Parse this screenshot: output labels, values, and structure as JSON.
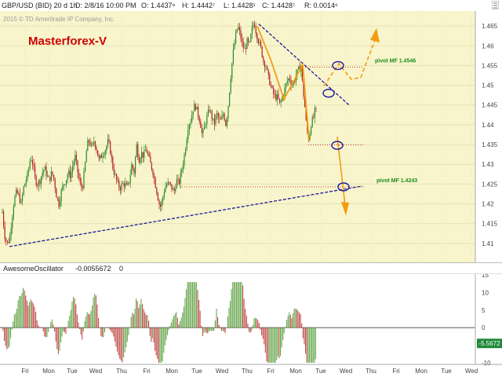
{
  "header": {
    "symbol": "GBP/USD (BID) 20 d 1h",
    "date": "D: 2/8/16 10:00 PM",
    "open": "O: 1.4437⁹",
    "high": "H: 1.4442⁷",
    "low": "L: 1.4428¹",
    "close": "C: 1.4428⁷",
    "range": "R: 0.0014⁶"
  },
  "copyright": "2015 © TD Ameritrade IP Company, Inc.",
  "brand": "Masterforex-V",
  "oscillator": {
    "name": "AwesomeOscillator",
    "value": "-0.0055672",
    "param": "0",
    "current_label": "-5.5672"
  },
  "colors": {
    "background": "#f8f5cc",
    "candle_up": "#2a8a2a",
    "candle_down": "#b52222",
    "trendline": "#1a1a9a",
    "pivot_line": "#cc2020",
    "pivot_text": "#1f8a1f",
    "orange": "#f39c12",
    "oscillator_up": "#6aa84f",
    "oscillator_down": "#c0504d",
    "current_badge": "#1f8a3a"
  },
  "chart_data": [
    {
      "type": "candlestick",
      "series": [
        {
          "name": "GBP/USD (BID)"
        }
      ],
      "y_ticks": [
        "1.465",
        "1.46",
        "1.455",
        "1.45",
        "1.445",
        "1.44",
        "1.435",
        "1.43",
        "1.425",
        "1.42",
        "1.415",
        "1.41"
      ],
      "ylim": [
        1.406,
        1.468
      ],
      "x_ticks": [
        "Fri",
        "Mon",
        "Tue",
        "Wed",
        "Thu",
        "Fri",
        "Mon",
        "Tue",
        "Wed",
        "Thu",
        "Fri",
        "Mon",
        "Tue",
        "Wed",
        "Thu",
        "Fri",
        "Mon",
        "Tue",
        "Wed"
      ],
      "close_path": [
        [
          0,
          1.417
        ],
        [
          3,
          1.418
        ],
        [
          6,
          1.412
        ],
        [
          9,
          1.41
        ],
        [
          12,
          1.411
        ],
        [
          15,
          1.416
        ],
        [
          18,
          1.421
        ],
        [
          21,
          1.423
        ],
        [
          24,
          1.422
        ],
        [
          27,
          1.42
        ],
        [
          30,
          1.424
        ],
        [
          33,
          1.426
        ],
        [
          36,
          1.428
        ],
        [
          39,
          1.432
        ],
        [
          42,
          1.43
        ],
        [
          45,
          1.426
        ],
        [
          48,
          1.425
        ],
        [
          51,
          1.426
        ],
        [
          54,
          1.428
        ],
        [
          57,
          1.429
        ],
        [
          60,
          1.427
        ],
        [
          63,
          1.426
        ],
        [
          66,
          1.428
        ],
        [
          69,
          1.426
        ],
        [
          72,
          1.422
        ],
        [
          75,
          1.42
        ],
        [
          78,
          1.423
        ],
        [
          81,
          1.425
        ],
        [
          84,
          1.426
        ],
        [
          87,
          1.428
        ],
        [
          90,
          1.427
        ],
        [
          93,
          1.43
        ],
        [
          96,
          1.432
        ],
        [
          99,
          1.428
        ],
        [
          102,
          1.425
        ],
        [
          105,
          1.424
        ],
        [
          108,
          1.429
        ],
        [
          111,
          1.435
        ],
        [
          114,
          1.436
        ],
        [
          117,
          1.434
        ],
        [
          120,
          1.436
        ],
        [
          123,
          1.434
        ],
        [
          126,
          1.431
        ],
        [
          129,
          1.432
        ],
        [
          132,
          1.433
        ],
        [
          135,
          1.434
        ],
        [
          138,
          1.436
        ],
        [
          141,
          1.433
        ],
        [
          144,
          1.429
        ],
        [
          147,
          1.427
        ],
        [
          150,
          1.425
        ],
        [
          153,
          1.424
        ],
        [
          156,
          1.425
        ],
        [
          159,
          1.425
        ],
        [
          162,
          1.424
        ],
        [
          165,
          1.426
        ],
        [
          168,
          1.43
        ],
        [
          171,
          1.428
        ],
        [
          174,
          1.435
        ],
        [
          177,
          1.431
        ],
        [
          180,
          1.433
        ],
        [
          183,
          1.432
        ],
        [
          186,
          1.434
        ],
        [
          189,
          1.432
        ],
        [
          192,
          1.43
        ],
        [
          195,
          1.428
        ],
        [
          198,
          1.425
        ],
        [
          201,
          1.422
        ],
        [
          204,
          1.419
        ],
        [
          207,
          1.421
        ],
        [
          210,
          1.424
        ],
        [
          213,
          1.425
        ],
        [
          216,
          1.425
        ],
        [
          219,
          1.424
        ],
        [
          222,
          1.423
        ],
        [
          225,
          1.426
        ],
        [
          228,
          1.425
        ],
        [
          231,
          1.428
        ],
        [
          234,
          1.431
        ],
        [
          237,
          1.435
        ],
        [
          240,
          1.44
        ],
        [
          243,
          1.441
        ],
        [
          246,
          1.444
        ],
        [
          249,
          1.445
        ],
        [
          252,
          1.443
        ],
        [
          255,
          1.441
        ],
        [
          258,
          1.437
        ],
        [
          261,
          1.44
        ],
        [
          264,
          1.442
        ],
        [
          267,
          1.444
        ],
        [
          270,
          1.442
        ],
        [
          273,
          1.44
        ],
        [
          276,
          1.443
        ],
        [
          279,
          1.441
        ],
        [
          282,
          1.441
        ],
        [
          285,
          1.443
        ],
        [
          288,
          1.44
        ],
        [
          291,
          1.445
        ],
        [
          294,
          1.452
        ],
        [
          297,
          1.458
        ],
        [
          300,
          1.462
        ],
        [
          303,
          1.465
        ],
        [
          306,
          1.463
        ],
        [
          309,
          1.46
        ],
        [
          312,
          1.459
        ],
        [
          315,
          1.461
        ],
        [
          318,
          1.46
        ],
        [
          321,
          1.464
        ],
        [
          324,
          1.466
        ],
        [
          327,
          1.463
        ],
        [
          330,
          1.461
        ],
        [
          333,
          1.459
        ],
        [
          336,
          1.456
        ],
        [
          339,
          1.455
        ],
        [
          342,
          1.452
        ],
        [
          345,
          1.45
        ],
        [
          348,
          1.448
        ],
        [
          351,
          1.447
        ],
        [
          354,
          1.447
        ],
        [
          357,
          1.445
        ],
        [
          360,
          1.447
        ],
        [
          363,
          1.449
        ],
        [
          366,
          1.451
        ],
        [
          369,
          1.452
        ],
        [
          372,
          1.45
        ],
        [
          375,
          1.451
        ],
        [
          378,
          1.453
        ],
        [
          381,
          1.454
        ],
        [
          384,
          1.455
        ],
        [
          386,
          1.449
        ],
        [
          388,
          1.446
        ],
        [
          390,
          1.441
        ],
        [
          392,
          1.438
        ],
        [
          394,
          1.436
        ],
        [
          396,
          1.44
        ],
        [
          398,
          1.441
        ],
        [
          400,
          1.442
        ],
        [
          402,
          1.444
        ],
        [
          404,
          1.443
        ]
      ],
      "annotations": [
        {
          "text": "pivot MF 1.4546",
          "y": 1.4546
        },
        {
          "text": "pivot MF 1.4243",
          "y": 1.4243
        }
      ]
    },
    {
      "type": "bar",
      "series": [
        {
          "name": "AwesomeOscillator"
        }
      ],
      "y_ticks": [
        "15",
        "10",
        "5",
        "0",
        "-5",
        "-10"
      ],
      "ylim": [
        -10.5,
        15.5
      ]
    }
  ]
}
